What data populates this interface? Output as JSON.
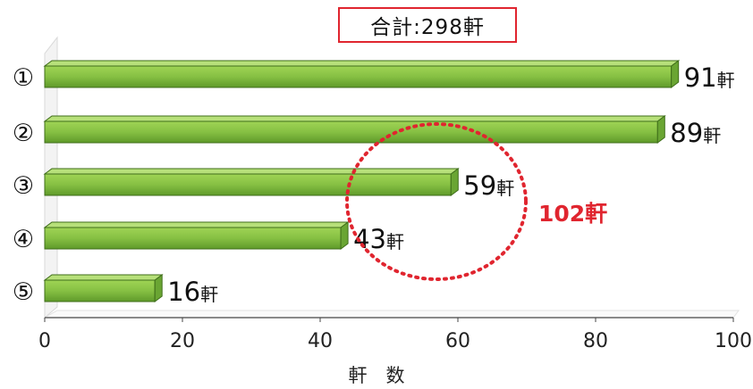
{
  "chart_data": {
    "type": "bar",
    "orientation": "horizontal",
    "title": "合計:298軒",
    "categories": [
      "①",
      "②",
      "③",
      "④",
      "⑤"
    ],
    "values": [
      91,
      89,
      59,
      43,
      16
    ],
    "value_labels": [
      "91軒",
      "89軒",
      "59軒",
      "43軒",
      "16軒"
    ],
    "xlabel": "軒　数",
    "ylabel": "",
    "xlim": [
      0,
      100
    ],
    "xticks": [
      "0",
      "20",
      "40",
      "60",
      "80",
      "100"
    ],
    "grid": false,
    "legend": "none",
    "bar_color": "#8cc63f",
    "annotation": {
      "text": "102軒",
      "color": "#e0252f",
      "encircles": [
        "③",
        "④"
      ]
    }
  }
}
